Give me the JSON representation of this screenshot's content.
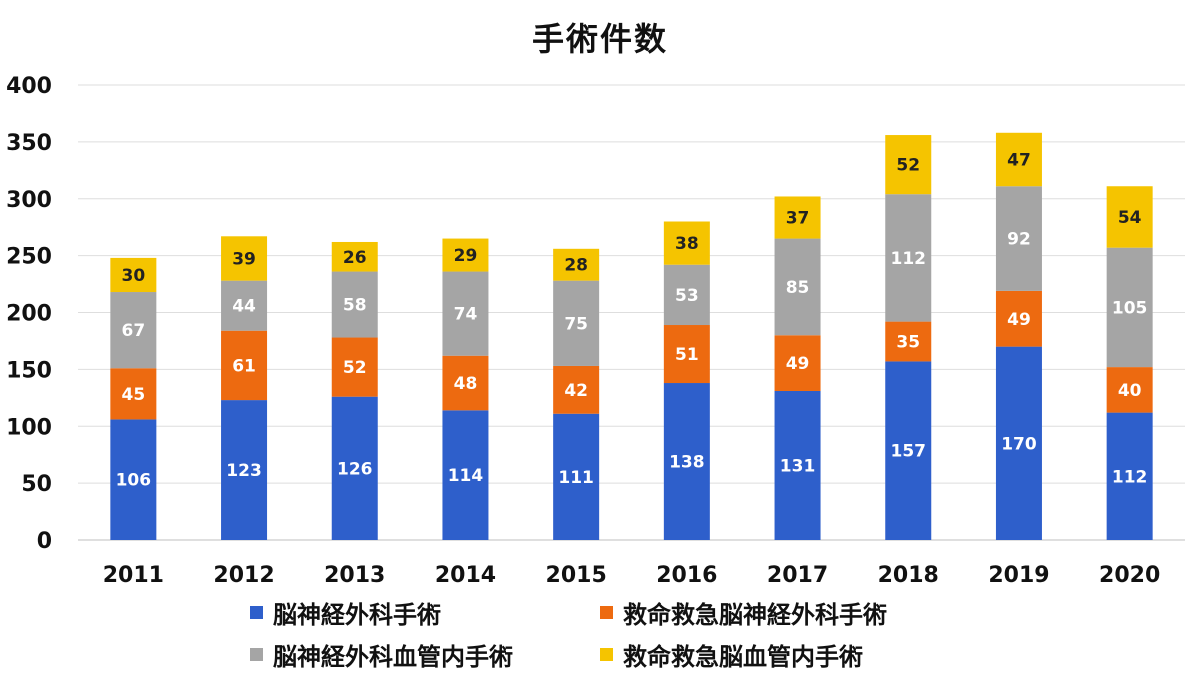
{
  "chart_data": {
    "type": "bar",
    "stacked": true,
    "title": "手術件数",
    "categories": [
      "2011",
      "2012",
      "2013",
      "2014",
      "2015",
      "2016",
      "2017",
      "2018",
      "2019",
      "2020"
    ],
    "ylim": [
      0,
      400
    ],
    "yticks": [
      0,
      50,
      100,
      150,
      200,
      250,
      300,
      350,
      400
    ],
    "grid": true,
    "legend_position": "bottom",
    "series": [
      {
        "name": "脳神経外科手術",
        "color": "#2E5FCB",
        "label_color": "#ffffff",
        "values": [
          106,
          123,
          126,
          114,
          111,
          138,
          131,
          157,
          170,
          112
        ]
      },
      {
        "name": "救命救急脳神経外科手術",
        "color": "#ED6A10",
        "label_color": "#ffffff",
        "values": [
          45,
          61,
          52,
          48,
          42,
          51,
          49,
          35,
          49,
          40
        ]
      },
      {
        "name": "脳神経外科血管内手術",
        "color": "#A5A5A5",
        "label_color": "#ffffff",
        "values": [
          67,
          44,
          58,
          74,
          75,
          53,
          85,
          112,
          92,
          105
        ]
      },
      {
        "name": "救命救急脳血管内手術",
        "color": "#F5C400",
        "label_color": "#222222",
        "values": [
          30,
          39,
          26,
          29,
          28,
          38,
          37,
          52,
          47,
          54
        ]
      }
    ]
  }
}
